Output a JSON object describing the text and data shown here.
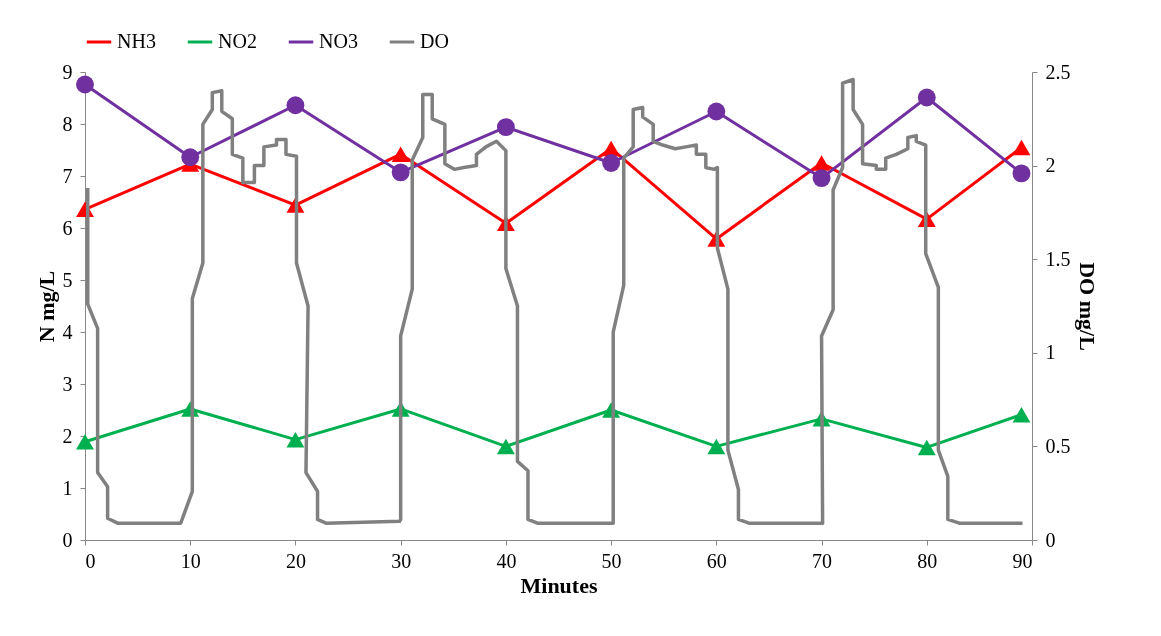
{
  "chart_data": {
    "type": "line",
    "xlabel": "Minutes",
    "ylabel": "N mg/L",
    "y2label": "DO mg/L",
    "x": [
      0,
      10,
      20,
      30,
      40,
      50,
      60,
      70,
      80,
      89
    ],
    "series": [
      {
        "name": "NH3",
        "color": "#ff0000",
        "marker": "triangle",
        "values": [
          6.36,
          7.23,
          6.44,
          7.42,
          6.09,
          7.53,
          5.79,
          7.25,
          6.17,
          7.55
        ]
      },
      {
        "name": "NO2",
        "color": "#00b050",
        "marker": "triangle",
        "values": [
          1.89,
          2.52,
          1.93,
          2.52,
          1.8,
          2.5,
          1.8,
          2.33,
          1.78,
          2.41
        ]
      },
      {
        "name": "NO3",
        "color": "#7030a0",
        "marker": "circle",
        "values": [
          8.76,
          7.36,
          8.36,
          7.07,
          7.94,
          7.25,
          8.24,
          6.96,
          8.51,
          7.05
        ]
      },
      {
        "name": "DO",
        "color": "#808080",
        "marker": "none",
        "axis": "y2",
        "type": "step",
        "x": [
          0.26,
          0.26,
          1.2,
          1.2,
          2.15,
          2.15,
          3.1,
          9.1,
          10.2,
          10.2,
          11.2,
          11.2,
          12.1,
          12.1,
          13.0,
          13.0,
          14.0,
          14.0,
          15.0,
          15.0,
          16.1,
          16.1,
          17.0,
          17.0,
          18.2,
          18.2,
          19.1,
          19.1,
          20.1,
          20.1,
          21.2,
          21.0,
          22.1,
          22.1,
          22.9,
          29.9,
          30.0,
          30.0,
          31.1,
          31.1,
          32.1,
          32.1,
          33.0,
          33.0,
          34.2,
          34.2,
          35.1,
          36.0,
          37.2,
          37.2,
          38.1,
          39.1,
          40.0,
          40.0,
          41.1,
          41.1,
          42.1,
          42.1,
          43.0,
          50.2,
          50.2,
          51.2,
          51.2,
          52.1,
          52.1,
          53.0,
          53.0,
          54.0,
          54.0,
          54.9,
          56.1,
          57.1,
          58.1,
          58.1,
          59.0,
          59.0,
          59.8,
          60.1,
          60.1,
          61.1,
          61.1,
          62.1,
          62.1,
          63.1,
          70.1,
          70.0,
          71.1,
          71.1,
          72.0,
          72.0,
          73.0,
          73.0,
          73.9,
          73.9,
          75.2,
          75.2,
          76.1,
          76.1,
          77.1,
          78.2,
          78.2,
          79.0,
          79.0,
          79.9,
          79.9,
          81.1,
          81.1,
          82.0,
          82.0,
          83.1,
          89.1
        ],
        "values": [
          1.88,
          1.26,
          1.13,
          0.36,
          0.285,
          0.116,
          0.09,
          0.09,
          0.26,
          1.29,
          1.48,
          2.22,
          2.3,
          2.39,
          2.4,
          2.29,
          2.25,
          2.06,
          2.04,
          1.91,
          1.91,
          2.0,
          2.0,
          2.1,
          2.11,
          2.14,
          2.14,
          2.06,
          2.05,
          1.48,
          1.25,
          0.36,
          0.26,
          0.11,
          0.09,
          0.1,
          0.11,
          1.09,
          1.34,
          2.03,
          2.15,
          2.38,
          2.38,
          2.25,
          2.22,
          2.01,
          1.98,
          1.99,
          2.0,
          2.06,
          2.1,
          2.13,
          2.08,
          1.45,
          1.25,
          0.42,
          0.37,
          0.11,
          0.09,
          0.09,
          1.11,
          1.36,
          2.04,
          2.1,
          2.3,
          2.31,
          2.26,
          2.22,
          2.13,
          2.11,
          2.09,
          2.1,
          2.11,
          2.06,
          2.06,
          1.99,
          1.98,
          1.99,
          1.56,
          1.34,
          0.48,
          0.27,
          0.11,
          0.09,
          0.09,
          1.09,
          1.23,
          1.87,
          1.99,
          2.44,
          2.46,
          2.3,
          2.22,
          2.01,
          2.0,
          1.98,
          1.98,
          2.04,
          2.06,
          2.09,
          2.15,
          2.16,
          2.13,
          2.11,
          1.53,
          1.35,
          0.48,
          0.34,
          0.11,
          0.09,
          0.09
        ]
      }
    ],
    "xlim": [
      0,
      90
    ],
    "xticks": [
      0,
      10,
      20,
      30,
      40,
      50,
      60,
      70,
      80,
      90
    ],
    "ylim": [
      0,
      9
    ],
    "yticks": [
      0,
      1,
      2,
      3,
      4,
      5,
      6,
      7,
      8,
      9
    ],
    "y2lim": [
      0,
      2.5
    ],
    "y2ticks": [
      0,
      0.5,
      1,
      1.5,
      2,
      2.5
    ],
    "legend": "top",
    "grid": false,
    "line_style": "solid"
  }
}
